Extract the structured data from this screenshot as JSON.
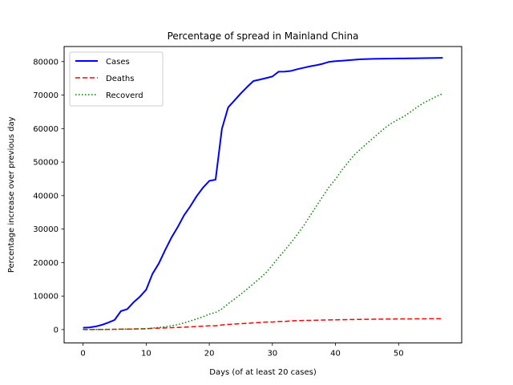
{
  "chart_data": {
    "type": "line",
    "title": "Percentage of spread in Mainland China",
    "xlabel": "Days (of at least 20 cases)",
    "ylabel": "Percentage increase over previous day",
    "xlim": [
      -3,
      60
    ],
    "ylim": [
      -4000,
      84500
    ],
    "xticks": [
      0,
      10,
      20,
      30,
      40,
      50
    ],
    "yticks": [
      0,
      10000,
      20000,
      30000,
      40000,
      50000,
      60000,
      70000,
      80000
    ],
    "grid": false,
    "legend_position": "top-left",
    "x": [
      0,
      1,
      2,
      3,
      4,
      5,
      6,
      7,
      8,
      9,
      10,
      11,
      12,
      13,
      14,
      15,
      16,
      17,
      18,
      19,
      20,
      21,
      22,
      23,
      24,
      25,
      26,
      27,
      28,
      29,
      30,
      31,
      32,
      33,
      34,
      35,
      36,
      37,
      38,
      39,
      40,
      41,
      42,
      43,
      44,
      45,
      46,
      47,
      48,
      49,
      50,
      51,
      52,
      53,
      54,
      55,
      56,
      57
    ],
    "series": [
      {
        "name": "Cases",
        "color": "#0000ff",
        "style": "solid",
        "values": [
          548,
          643,
          920,
          1406,
          2075,
          2877,
          5509,
          6087,
          8141,
          9802,
          11891,
          16630,
          19716,
          23707,
          27440,
          30587,
          34110,
          36814,
          39829,
          42354,
          44386,
          44759,
          59895,
          66358,
          68413,
          70513,
          72434,
          74211,
          74619,
          75077,
          75550,
          77001,
          77022,
          77241,
          77754,
          78166,
          78600,
          78928,
          79356,
          79932,
          80136,
          80261,
          80386,
          80537,
          80690,
          80770,
          80823,
          80860,
          80887,
          80921,
          80932,
          80945,
          80977,
          81003,
          81021,
          81048,
          81077,
          81116
        ]
      },
      {
        "name": "Deaths",
        "color": "#ff0000",
        "style": "dashed",
        "values": [
          17,
          18,
          26,
          42,
          56,
          82,
          131,
          133,
          171,
          213,
          259,
          361,
          425,
          490,
          562,
          632,
          717,
          804,
          904,
          1011,
          1111,
          1116,
          1368,
          1520,
          1662,
          1765,
          1863,
          2002,
          2114,
          2236,
          2236,
          2441,
          2443,
          2592,
          2663,
          2715,
          2744,
          2788,
          2835,
          2870,
          2912,
          2943,
          2981,
          3012,
          3042,
          3070,
          3097,
          3119,
          3136,
          3158,
          3169,
          3176,
          3189,
          3199,
          3213,
          3226,
          3237,
          3245
        ]
      },
      {
        "name": "Recoverd",
        "color": "#008000",
        "style": "dotted",
        "values": [
          28,
          30,
          36,
          39,
          49,
          58,
          101,
          120,
          135,
          214,
          275,
          463,
          614,
          843,
          1115,
          1476,
          1994,
          2563,
          3174,
          3822,
          4604,
          5119,
          6167,
          7713,
          9113,
          10562,
          12097,
          13684,
          15277,
          17010,
          19227,
          21586,
          23753,
          26048,
          28527,
          31096,
          34055,
          36934,
          39787,
          42626,
          44876,
          47579,
          49918,
          52183,
          53916,
          55602,
          57203,
          58857,
          60430,
          61761,
          62768,
          63829,
          65126,
          66488,
          67707,
          68651,
          69601,
          70441
        ]
      }
    ]
  }
}
